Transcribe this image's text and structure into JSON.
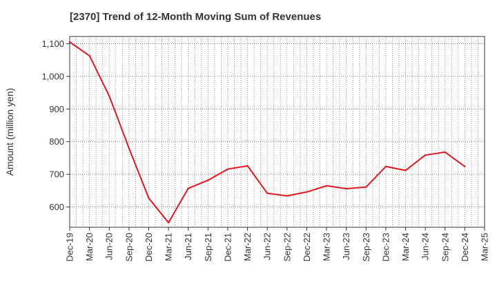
{
  "chart_data": {
    "type": "line",
    "title": "[2370]  Trend of 12-Month Moving Sum of Revenues",
    "xlabel": "",
    "ylabel": "Amount (million yen)",
    "ylim": [
      538,
      1122
    ],
    "yticks": [
      600,
      700,
      800,
      900,
      1000,
      1100
    ],
    "ytick_labels": [
      "600",
      "700",
      "800",
      "900",
      "1,000",
      "1,100"
    ],
    "xtick_labels": [
      "Dec-19",
      "Mar-20",
      "Jun-20",
      "Sep-20",
      "Dec-20",
      "Mar-21",
      "Jun-21",
      "Sep-21",
      "Dec-21",
      "Mar-22",
      "Jun-22",
      "Sep-22",
      "Dec-22",
      "Mar-23",
      "Jun-23",
      "Sep-23",
      "Dec-23",
      "Mar-24",
      "Jun-24",
      "Sep-24",
      "Dec-24",
      "Mar-25"
    ],
    "grid": true,
    "series": [
      {
        "color": "#e8141b",
        "x": [
          "Dec-19",
          "Mar-20",
          "Jun-20",
          "Sep-20",
          "Dec-20",
          "Mar-21",
          "Jun-21",
          "Sep-21",
          "Dec-21",
          "Mar-22",
          "Jun-22",
          "Sep-22",
          "Dec-22",
          "Mar-23",
          "Jun-23",
          "Sep-23",
          "Dec-23",
          "Mar-24",
          "Jun-24",
          "Sep-24",
          "Dec-24"
        ],
        "values": [
          1105,
          1063,
          940,
          780,
          627,
          552,
          657,
          682,
          716,
          726,
          642,
          634,
          646,
          665,
          656,
          661,
          724,
          712,
          759,
          768,
          724
        ]
      }
    ]
  }
}
